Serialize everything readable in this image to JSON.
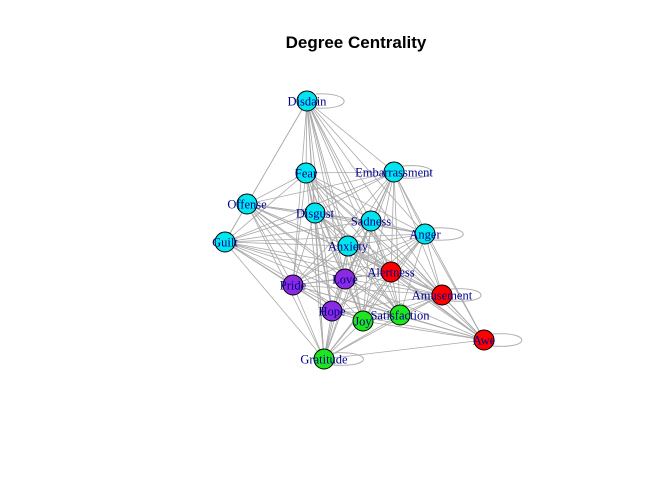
{
  "title": "Degree Centrality",
  "colors": {
    "cyan": "#00E5EE",
    "purple": "#8A2BE2",
    "red": "#FF0000",
    "green": "#1EE61E",
    "edge": "#A9A9A9",
    "label": "#00008B"
  },
  "nodes": [
    {
      "id": "disdain",
      "label": "Disdain",
      "group": "cyan"
    },
    {
      "id": "fear",
      "label": "Fear",
      "group": "cyan"
    },
    {
      "id": "embarrassment",
      "label": "Embarrassment",
      "group": "cyan"
    },
    {
      "id": "offense",
      "label": "Offense",
      "group": "cyan"
    },
    {
      "id": "disgust",
      "label": "Disgust",
      "group": "cyan"
    },
    {
      "id": "sadness",
      "label": "Sadness",
      "group": "cyan"
    },
    {
      "id": "anger",
      "label": "Anger",
      "group": "cyan"
    },
    {
      "id": "guilt",
      "label": "Guilt",
      "group": "cyan"
    },
    {
      "id": "anxiety",
      "label": "Anxiety",
      "group": "cyan"
    },
    {
      "id": "love",
      "label": "Love",
      "group": "purple"
    },
    {
      "id": "pride",
      "label": "Pride",
      "group": "purple"
    },
    {
      "id": "hope",
      "label": "Hope",
      "group": "purple"
    },
    {
      "id": "alertness",
      "label": "Alertness",
      "group": "red"
    },
    {
      "id": "amusement",
      "label": "Amusement",
      "group": "red"
    },
    {
      "id": "awe",
      "label": "Awe",
      "group": "red"
    },
    {
      "id": "satisfaction",
      "label": "Satisfaction",
      "group": "green"
    },
    {
      "id": "joy",
      "label": "Joy",
      "group": "green"
    },
    {
      "id": "gratitude",
      "label": "Gratitude",
      "group": "green"
    }
  ]
}
